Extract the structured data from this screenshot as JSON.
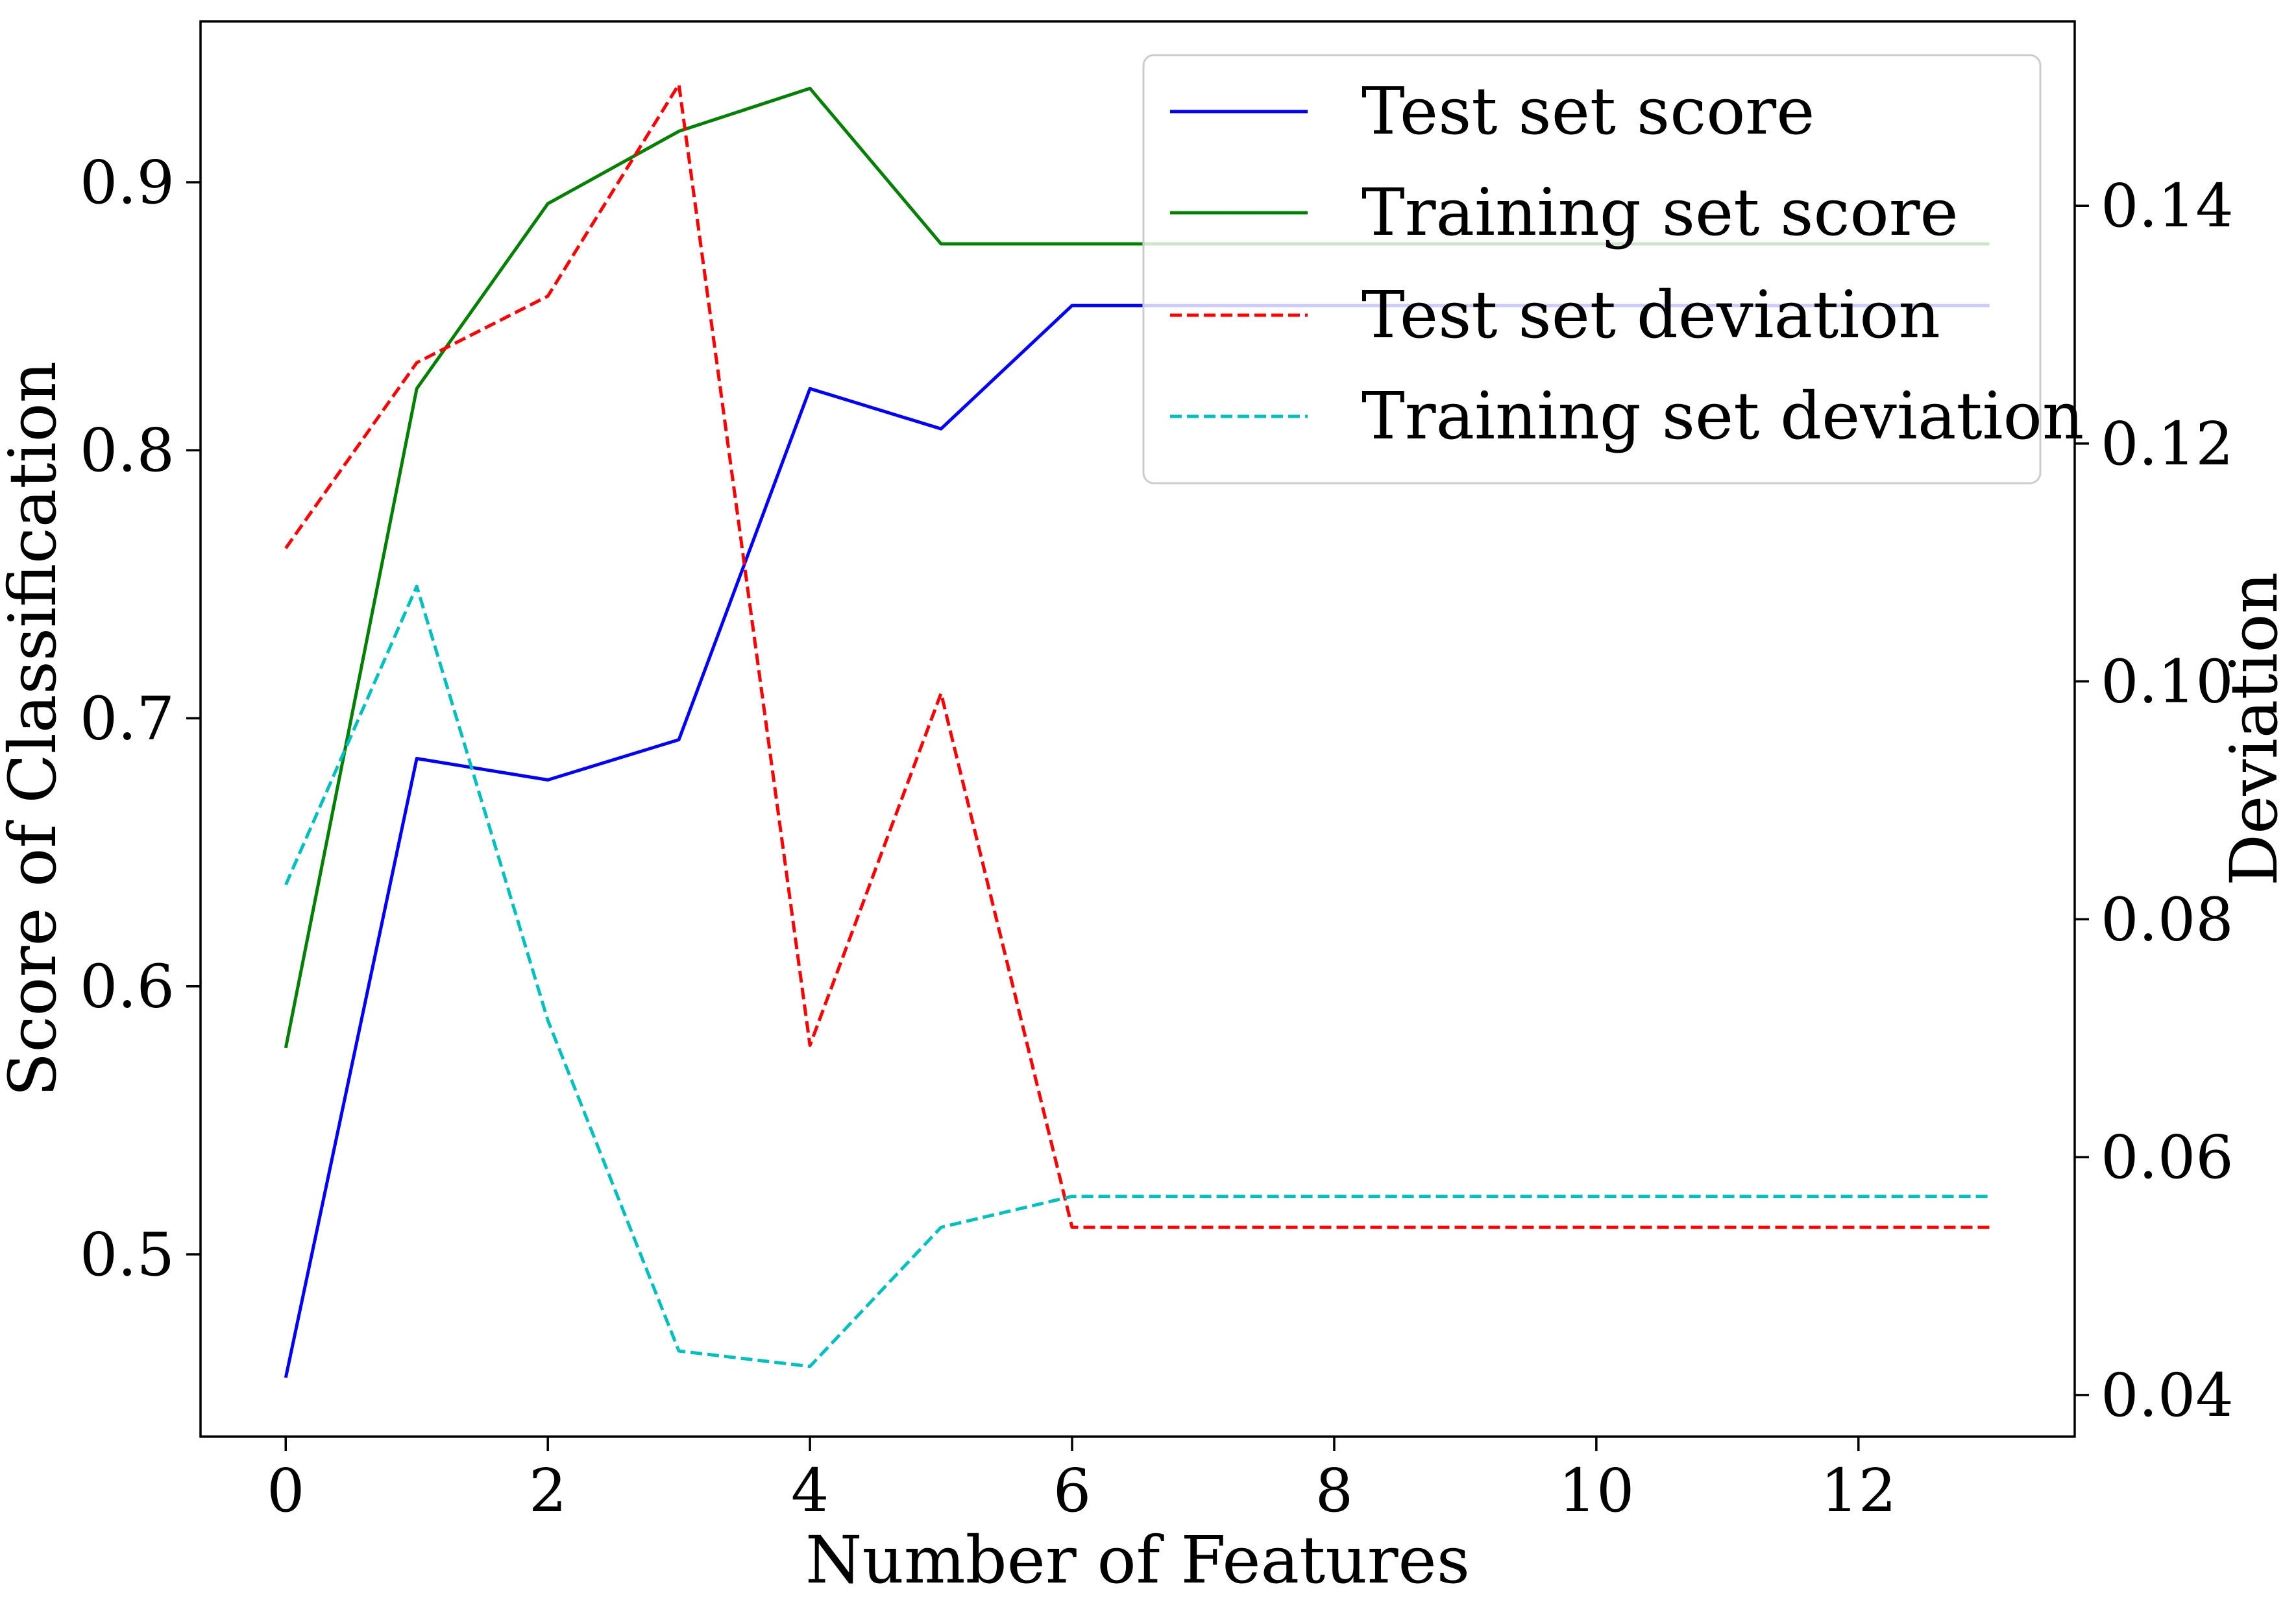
{
  "chart_data": {
    "type": "line",
    "title": "",
    "xlabel": "Number of Features",
    "ylabel": "Score of Classification",
    "ylabel_right": "Deviation",
    "xlim": [
      -0.65,
      13.65
    ],
    "ylim": [
      0.432,
      0.96
    ],
    "ylim_right": [
      0.0365,
      0.1555
    ],
    "x_ticks": [
      0,
      2,
      4,
      6,
      8,
      10,
      12
    ],
    "x_tick_labels": [
      "0",
      "2",
      "4",
      "6",
      "8",
      "10",
      "12"
    ],
    "y_ticks": [
      0.5,
      0.6,
      0.7,
      0.8,
      0.9
    ],
    "y_tick_labels": [
      "0.5",
      "0.6",
      "0.7",
      "0.8",
      "0.9"
    ],
    "y_right_ticks": [
      0.04,
      0.06,
      0.08,
      0.1,
      0.12,
      0.14
    ],
    "y_right_tick_labels": [
      "0.04",
      "0.06",
      "0.08",
      "0.10",
      "0.12",
      "0.14"
    ],
    "grid": false,
    "legend_position": "top-right",
    "x": [
      0,
      1,
      2,
      3,
      4,
      5,
      6,
      7,
      8,
      9,
      10,
      11,
      12,
      13
    ],
    "series": [
      {
        "name": "Test set score",
        "axis": "left",
        "color": "#0000ff",
        "dash": "solid",
        "values": [
          0.454,
          0.685,
          0.677,
          0.692,
          0.823,
          0.808,
          0.854,
          0.854,
          0.854,
          0.854,
          0.854,
          0.854,
          0.854,
          0.854
        ]
      },
      {
        "name": "Training set score",
        "axis": "left",
        "color": "#008000",
        "dash": "solid",
        "values": [
          0.577,
          0.823,
          0.892,
          0.919,
          0.935,
          0.877,
          0.877,
          0.877,
          0.877,
          0.877,
          0.877,
          0.877,
          0.877,
          0.877
        ]
      },
      {
        "name": "Test set deviation",
        "axis": "right",
        "color": "#ff0000",
        "dash": "dashed",
        "values": [
          0.1112,
          0.1268,
          0.1324,
          0.1502,
          0.0694,
          0.099,
          0.0541,
          0.0541,
          0.0541,
          0.0541,
          0.0541,
          0.0541,
          0.0541,
          0.0541
        ]
      },
      {
        "name": "Training set deviation",
        "axis": "right",
        "color": "#00bfbf",
        "dash": "dashed",
        "values": [
          0.0829,
          0.108,
          0.0715,
          0.0437,
          0.0424,
          0.0541,
          0.0567,
          0.0567,
          0.0567,
          0.0567,
          0.0567,
          0.0567,
          0.0567,
          0.0567
        ]
      }
    ]
  }
}
